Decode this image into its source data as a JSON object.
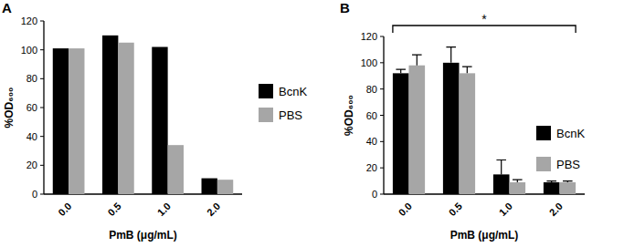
{
  "chart_data": [
    {
      "type": "bar",
      "title": "A",
      "categories": [
        "0.0",
        "0.5",
        "1.0",
        "2.0"
      ],
      "x_label": "PmB (μg/mL)",
      "y_label": "%OD₆₀₀",
      "series": [
        {
          "name": "BcnK",
          "color": "#000000",
          "values": [
            101,
            110,
            102,
            11
          ]
        },
        {
          "name": "PBS",
          "color": "#a6a6a6",
          "values": [
            101,
            105,
            34,
            10
          ]
        }
      ],
      "ylim": [
        0,
        120
      ],
      "yticks": [
        0,
        20,
        40,
        60,
        80,
        100,
        120
      ],
      "legend": "right"
    },
    {
      "type": "bar",
      "title": "B",
      "categories": [
        "0.0",
        "0.5",
        "1.0",
        "2.0"
      ],
      "x_label": "PmB (μg/mL)",
      "y_label": "%OD₆₀₀",
      "series": [
        {
          "name": "BcnK",
          "color": "#000000",
          "values": [
            92,
            100,
            15,
            9
          ],
          "errors": [
            3,
            12,
            11,
            1
          ]
        },
        {
          "name": "PBS",
          "color": "#a6a6a6",
          "values": [
            98,
            92,
            9,
            9
          ],
          "errors": [
            8,
            5,
            2,
            1
          ]
        }
      ],
      "ylim": [
        0,
        120
      ],
      "yticks": [
        0,
        20,
        40,
        60,
        80,
        100,
        120
      ],
      "legend": "right",
      "annotations": [
        {
          "text": "*",
          "span": [
            "0.0",
            "2.0"
          ]
        }
      ]
    }
  ]
}
